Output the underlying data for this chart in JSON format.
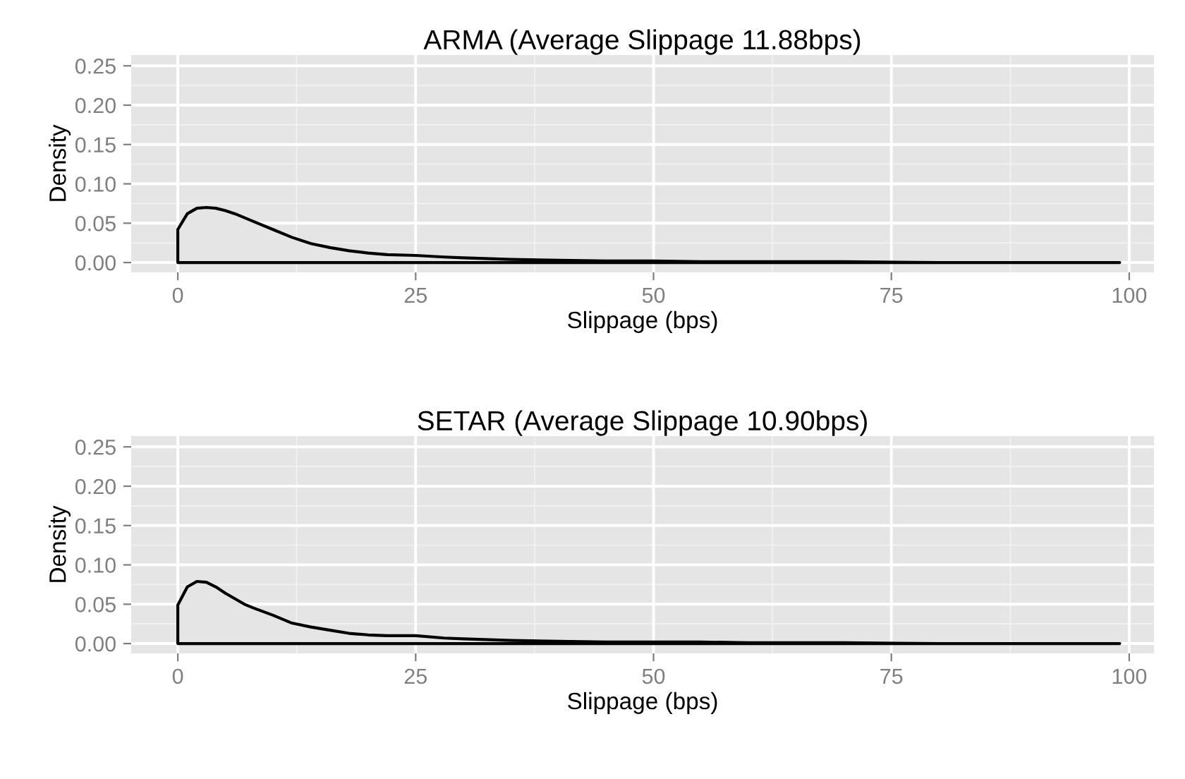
{
  "chart_data": [
    {
      "type": "area",
      "title": "ARMA (Average Slippage 11.88bps)",
      "xlabel": "Slippage (bps)",
      "ylabel": "Density",
      "xlim": [
        -4.9,
        102.6
      ],
      "ylim": [
        -0.0125,
        0.2637
      ],
      "xticks": [
        0,
        25,
        50,
        75,
        100
      ],
      "yticks": [
        {
          "value": 0,
          "label": "0.00"
        },
        {
          "value": 0.05,
          "label": "0.05"
        },
        {
          "value": 0.1,
          "label": "0.10"
        },
        {
          "value": 0.15,
          "label": "0.15"
        },
        {
          "value": 0.2,
          "label": "0.20"
        },
        {
          "value": 0.25,
          "label": "0.25"
        }
      ],
      "grid": true,
      "series": [
        {
          "color": "#000000",
          "x": [
            0,
            1,
            2,
            3,
            4,
            5,
            6,
            8,
            10,
            12,
            14,
            16,
            18,
            20,
            22,
            25,
            28,
            30,
            35,
            40,
            45,
            50,
            55,
            60,
            70,
            80,
            90,
            99
          ],
          "values": [
            0.042,
            0.062,
            0.069,
            0.07,
            0.069,
            0.066,
            0.062,
            0.052,
            0.042,
            0.032,
            0.024,
            0.019,
            0.015,
            0.012,
            0.01,
            0.009,
            0.007,
            0.006,
            0.004,
            0.003,
            0.002,
            0.002,
            0.001,
            0.001,
            0.001,
            0,
            0,
            0
          ]
        }
      ]
    },
    {
      "type": "area",
      "title": "SETAR (Average Slippage 10.90bps)",
      "xlabel": "Slippage (bps)",
      "ylabel": "Density",
      "xlim": [
        -4.9,
        102.6
      ],
      "ylim": [
        -0.0125,
        0.2637
      ],
      "xticks": [
        0,
        25,
        50,
        75,
        100
      ],
      "yticks": [
        {
          "value": 0,
          "label": "0.00"
        },
        {
          "value": 0.05,
          "label": "0.05"
        },
        {
          "value": 0.1,
          "label": "0.10"
        },
        {
          "value": 0.15,
          "label": "0.15"
        },
        {
          "value": 0.2,
          "label": "0.20"
        },
        {
          "value": 0.25,
          "label": "0.25"
        }
      ],
      "grid": true,
      "series": [
        {
          "color": "#000000",
          "x": [
            0,
            1,
            2,
            3,
            4,
            5,
            6,
            7,
            8,
            10,
            12,
            14,
            16,
            18,
            20,
            22,
            25,
            28,
            30,
            35,
            40,
            45,
            50,
            55,
            60,
            70,
            80,
            90,
            99
          ],
          "values": [
            0.049,
            0.072,
            0.079,
            0.078,
            0.072,
            0.064,
            0.057,
            0.05,
            0.045,
            0.036,
            0.026,
            0.021,
            0.017,
            0.013,
            0.011,
            0.01,
            0.01,
            0.007,
            0.006,
            0.004,
            0.003,
            0.002,
            0.002,
            0.002,
            0.001,
            0.001,
            0,
            0,
            0
          ]
        }
      ]
    }
  ]
}
